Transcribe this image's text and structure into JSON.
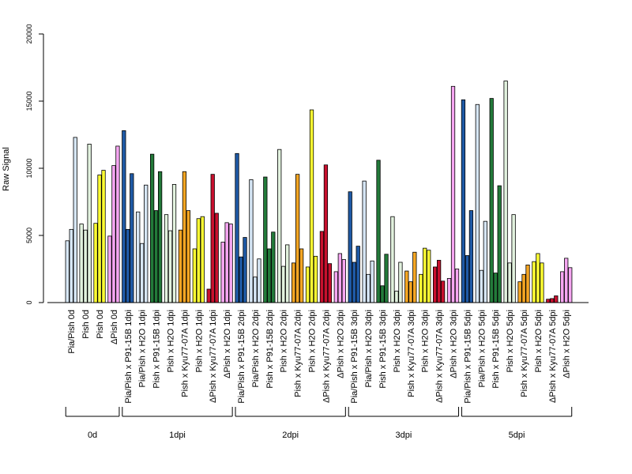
{
  "chart_data": {
    "type": "bar",
    "title": "",
    "xlabel": "",
    "ylabel": "Raw Signal",
    "ylim": [
      0,
      20000
    ],
    "yticks": [
      0,
      5000,
      10000,
      15000,
      20000
    ],
    "grid": false,
    "legend": "none",
    "colors": {
      "light_blue": "#d6e6f5",
      "blue": "#1f5aa6",
      "dark_green": "#237a3a",
      "light_green": "#e2f2de",
      "orange": "#f5a623",
      "yellow": "#ffff33",
      "red": "#c8102e",
      "pink": "#f6a6f2"
    },
    "categories": [
      {
        "label": "Pia/Pish 0d",
        "color": "light_blue",
        "values": [
          4600,
          5450,
          12300
        ]
      },
      {
        "label": "Pish 0d",
        "color": "light_green",
        "values": [
          5850,
          5400,
          11800
        ]
      },
      {
        "label": "Pish 0d",
        "color": "yellow",
        "values": [
          5900,
          9500,
          9850
        ]
      },
      {
        "label": "ΔPish 0d",
        "color": "pink",
        "values": [
          4950,
          10200,
          11650
        ]
      },
      {
        "label": "Pia/Pish x P91-15B 1dpi",
        "color": "blue",
        "values": [
          12800,
          5450,
          9600
        ]
      },
      {
        "label": "Pia/Pish x H2O 1dpi",
        "color": "light_blue",
        "values": [
          6750,
          4400,
          8750
        ]
      },
      {
        "label": "Pish x P91-15B 1dpi",
        "color": "dark_green",
        "values": [
          11050,
          6850,
          9750
        ]
      },
      {
        "label": "Pish x H2O 1dpi",
        "color": "light_green",
        "values": [
          6550,
          5350,
          8800
        ]
      },
      {
        "label": "Pish x Kyu77-07A 1dpi",
        "color": "orange",
        "values": [
          5400,
          9750,
          6850
        ]
      },
      {
        "label": "Pish x H2O 1dpi",
        "color": "yellow",
        "values": [
          4000,
          6250,
          6400
        ]
      },
      {
        "label": "ΔPish x Kyu77-07A 1dpi",
        "color": "red",
        "values": [
          1000,
          9550,
          6650
        ]
      },
      {
        "label": "ΔPish x H2O 1dpi",
        "color": "pink",
        "values": [
          4500,
          5950,
          5850
        ]
      },
      {
        "label": "Pia/Pish x P91-15B 2dpi",
        "color": "blue",
        "values": [
          11100,
          3400,
          4850
        ]
      },
      {
        "label": "Pia/Pish x H2O 2dpi",
        "color": "light_blue",
        "values": [
          9150,
          1900,
          3250
        ]
      },
      {
        "label": "Pish x P91-15B 2dpi",
        "color": "dark_green",
        "values": [
          9350,
          4000,
          5250
        ]
      },
      {
        "label": "Pish x H2O 2dpi",
        "color": "light_green",
        "values": [
          11400,
          2700,
          4300
        ]
      },
      {
        "label": "Pish x Kyu77-07A 2dpi",
        "color": "orange",
        "values": [
          2950,
          9550,
          4000
        ]
      },
      {
        "label": "Pish x H2O 2dpi",
        "color": "yellow",
        "values": [
          2650,
          14350,
          3450
        ]
      },
      {
        "label": "ΔPish x Kyu77-07A 2dpi",
        "color": "red",
        "values": [
          5300,
          10250,
          2900
        ]
      },
      {
        "label": "ΔPish x H2O 2dpi",
        "color": "pink",
        "values": [
          2300,
          3650,
          3200
        ]
      },
      {
        "label": "Pia/Pish x P91-15B 3dpi",
        "color": "blue",
        "values": [
          8250,
          3000,
          4200
        ]
      },
      {
        "label": "Pia/Pish x H2O 3dpi",
        "color": "light_blue",
        "values": [
          9050,
          2100,
          3100
        ]
      },
      {
        "label": "Pish x P91-15B 3dpi",
        "color": "dark_green",
        "values": [
          10600,
          1250,
          3600
        ]
      },
      {
        "label": "Pish x H2O 3dpi",
        "color": "light_green",
        "values": [
          6400,
          850,
          3000
        ]
      },
      {
        "label": "Pish x Kyu77-07A 3dpi",
        "color": "orange",
        "values": [
          2350,
          1550,
          3750
        ]
      },
      {
        "label": "Pish x H2O 3dpi",
        "color": "yellow",
        "values": [
          2100,
          4050,
          3900
        ]
      },
      {
        "label": "ΔPish x Kyu77-07A 3dpi",
        "color": "red",
        "values": [
          2650,
          3150,
          1600
        ]
      },
      {
        "label": "ΔPish x H2O 3dpi",
        "color": "pink",
        "values": [
          1800,
          16100,
          2500
        ]
      },
      {
        "label": "Pia/Pish x P91-15B 5dpi",
        "color": "blue",
        "values": [
          15100,
          3500,
          6850
        ]
      },
      {
        "label": "Pia/Pish x H2O 5dpi",
        "color": "light_blue",
        "values": [
          14750,
          2400,
          6050
        ]
      },
      {
        "label": "Pish x P91-15B 5dpi",
        "color": "dark_green",
        "values": [
          15200,
          2200,
          8700
        ]
      },
      {
        "label": "Pish x H2O 5dpi",
        "color": "light_green",
        "values": [
          16500,
          2950,
          6550
        ]
      },
      {
        "label": "Pish x Kyu77-07A 5dpi",
        "color": "orange",
        "values": [
          1550,
          2100,
          2800
        ]
      },
      {
        "label": "Pish x H2O 5dpi",
        "color": "yellow",
        "values": [
          3050,
          3650,
          2950
        ]
      },
      {
        "label": "ΔPish x Kyu77-07A 5dpi",
        "color": "red",
        "values": [
          250,
          300,
          500
        ]
      },
      {
        "label": "ΔPish x H2O 5dpi",
        "color": "pink",
        "values": [
          2300,
          3300,
          2600
        ]
      }
    ],
    "groups": [
      {
        "label": "0d",
        "start": 0,
        "end": 3
      },
      {
        "label": "1dpi",
        "start": 4,
        "end": 11
      },
      {
        "label": "2dpi",
        "start": 12,
        "end": 19
      },
      {
        "label": "3dpi",
        "start": 20,
        "end": 27
      },
      {
        "label": "5dpi",
        "start": 28,
        "end": 35
      }
    ]
  }
}
